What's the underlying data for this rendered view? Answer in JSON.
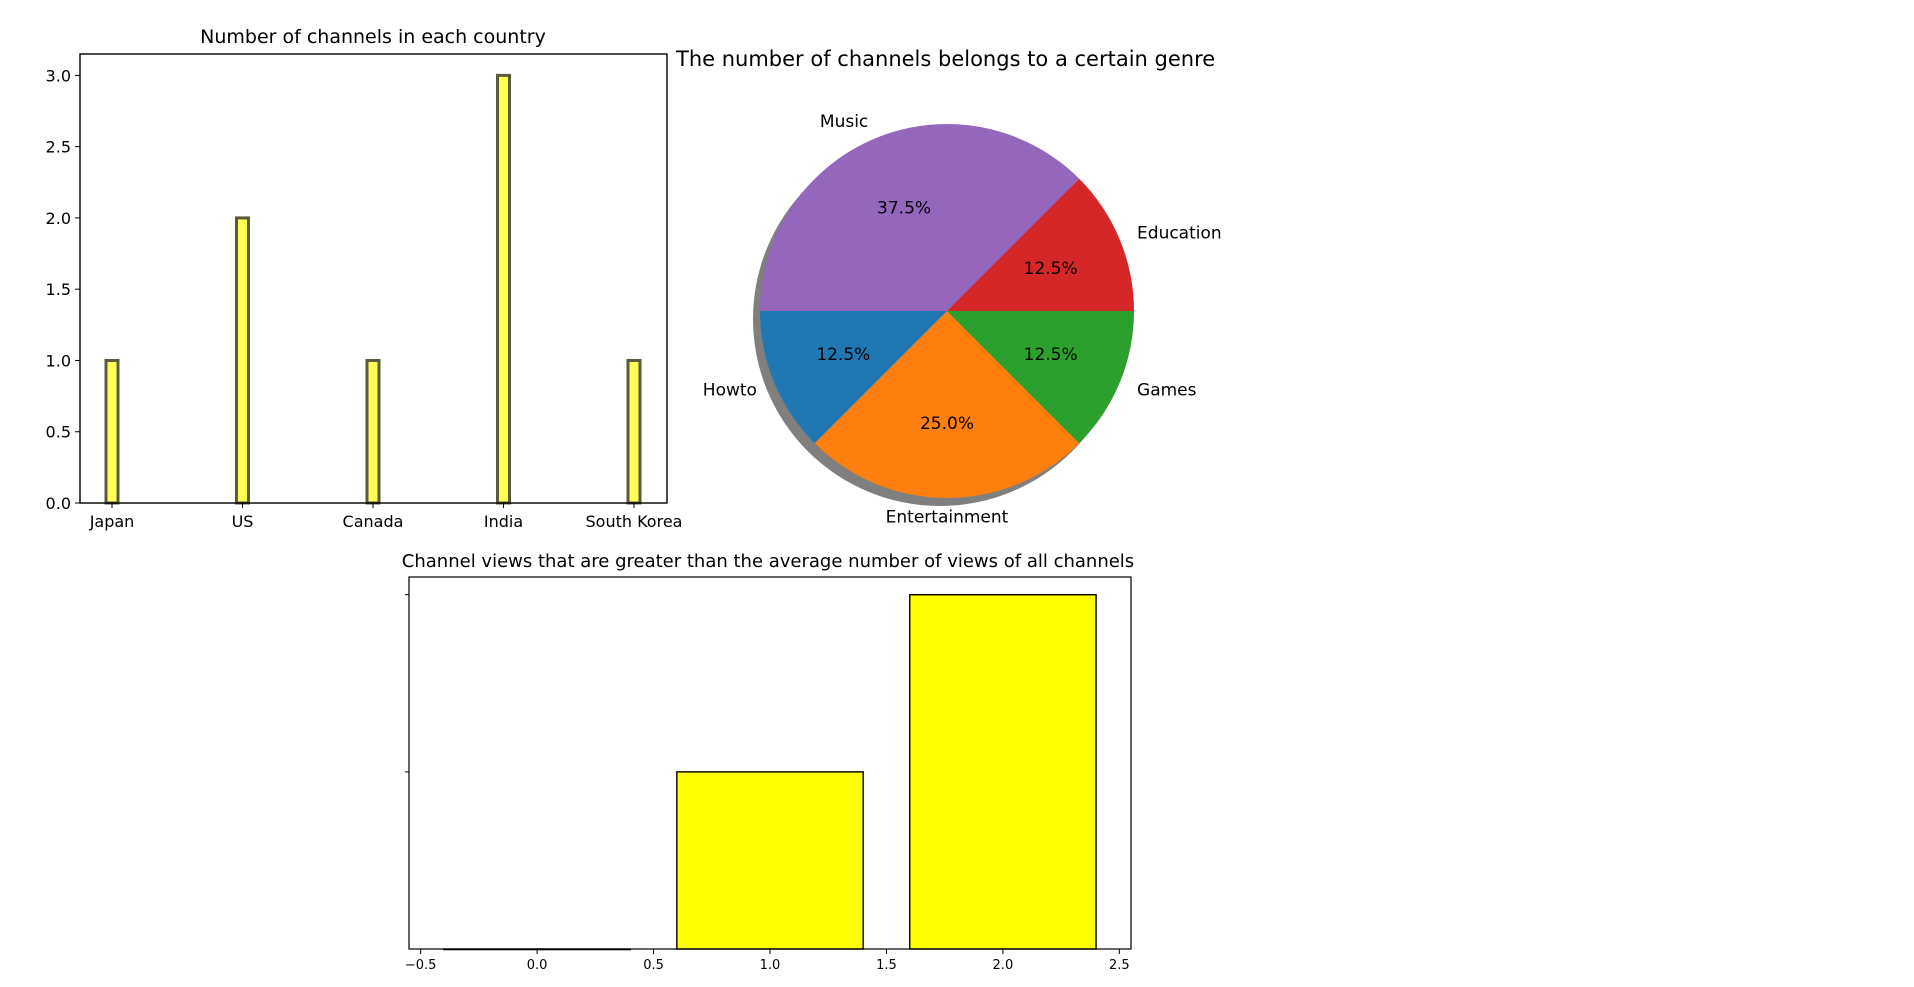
{
  "chart_data": [
    {
      "type": "bar",
      "title": "Number of channels in each country",
      "categories": [
        "Japan",
        "US",
        "Canada",
        "India",
        "South Korea"
      ],
      "values": [
        1,
        2,
        1,
        3,
        1
      ],
      "xlabel": "",
      "ylabel": "",
      "ylim": [
        0,
        3.15
      ],
      "yticks": [
        0.0,
        0.5,
        1.0,
        1.5,
        2.0,
        2.5,
        3.0
      ],
      "grid": false,
      "colors": {
        "fill": "#ffff55",
        "edge": "#5a5a3c"
      }
    },
    {
      "type": "pie",
      "title": "The number of channels belongs to a certain genre",
      "labels": [
        "Education",
        "Music",
        "Howto",
        "Entertainment",
        "Games"
      ],
      "values": [
        12.5,
        37.5,
        12.5,
        25.0,
        12.5
      ],
      "pct_labels": [
        "12.5%",
        "37.5%",
        "12.5%",
        "25.0%",
        "12.5%"
      ],
      "shadow": true,
      "colors": [
        "#d62728",
        "#9467bd",
        "#1f77b4",
        "#ff7f0e",
        "#2ca02c"
      ]
    },
    {
      "type": "bar",
      "title": "Channel views that are greater than the average number of views of all channels",
      "x": [
        0,
        1,
        2
      ],
      "values": [
        0,
        1,
        2
      ],
      "xlabel": "",
      "ylabel": "",
      "xlim": [
        -0.55,
        2.55
      ],
      "xticks": [
        -0.5,
        0.0,
        0.5,
        1.0,
        1.5,
        2.0,
        2.5
      ],
      "xtick_labels": [
        "−0.5",
        "0.0",
        "0.5",
        "1.0",
        "1.5",
        "2.0",
        "2.5"
      ],
      "ylim": [
        0,
        2.1
      ],
      "yticks": [
        1,
        2
      ],
      "grid": false,
      "colors": {
        "fill": "#ffff00",
        "edge": "#000000"
      }
    }
  ]
}
